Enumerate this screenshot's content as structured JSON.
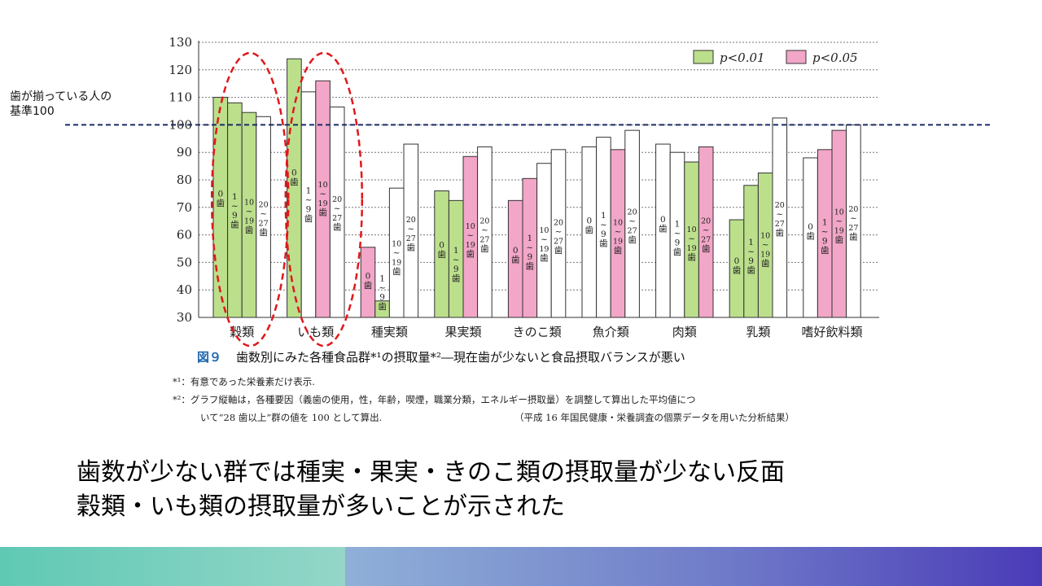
{
  "side_note": [
    "歯が揃っている人の",
    "基準100"
  ],
  "chart_data": {
    "type": "bar",
    "ylim": [
      30,
      130
    ],
    "yticks": [
      30,
      40,
      50,
      60,
      70,
      80,
      90,
      100,
      110,
      120,
      130
    ],
    "reference_line": 100,
    "legend": [
      {
        "label": "p<0.01",
        "color": "#bcdf8c"
      },
      {
        "label": "p<0.05",
        "color": "#f2a6c8"
      }
    ],
    "legend_placement": "top-right",
    "bar_labels": [
      "0歯",
      "1~9歯",
      "10~19歯",
      "20~27歯"
    ],
    "categories": [
      {
        "name": "穀類",
        "values": [
          110,
          108,
          104.5,
          103
        ],
        "sig": [
          "g",
          "g",
          "g",
          "n"
        ],
        "highlighted": true
      },
      {
        "name": "いも類",
        "values": [
          124,
          112,
          116,
          106.5
        ],
        "sig": [
          "g",
          "n",
          "p",
          "n"
        ],
        "highlighted": true
      },
      {
        "name": "種実類",
        "values": [
          55.5,
          36,
          77,
          93
        ],
        "sig": [
          "p",
          "g",
          "n",
          "n"
        ]
      },
      {
        "name": "果実類",
        "values": [
          76,
          72.5,
          88.5,
          92
        ],
        "sig": [
          "g",
          "g",
          "p",
          "n"
        ]
      },
      {
        "name": "きのこ類",
        "values": [
          72.5,
          80.5,
          86,
          91
        ],
        "sig": [
          "p",
          "p",
          "n",
          "n"
        ]
      },
      {
        "name": "魚介類",
        "values": [
          92,
          95.5,
          91,
          98
        ],
        "sig": [
          "n",
          "n",
          "p",
          "n"
        ]
      },
      {
        "name": "肉類",
        "values": [
          93,
          90,
          86.5,
          92
        ],
        "sig": [
          "n",
          "n",
          "g",
          "p"
        ]
      },
      {
        "name": "乳類",
        "values": [
          65.5,
          78,
          82.5,
          102.5
        ],
        "sig": [
          "g",
          "g",
          "g",
          "n"
        ]
      },
      {
        "name": "嗜好飲料類",
        "values": [
          88,
          91,
          98,
          100
        ],
        "sig": [
          "n",
          "p",
          "p",
          "n"
        ]
      }
    ],
    "colors": {
      "g": "#bcdf8c",
      "p": "#f2a6c8",
      "n": "#ffffff",
      "ref_line": "#1a2a66",
      "highlight": "#e0181b"
    }
  },
  "caption": {
    "number": "図９",
    "text": "歯数別にみた各種食品群*¹の摂取量*²―現在歯が少ないと食品摂取バランスが悪い"
  },
  "notes": {
    "n1": "*¹：有意であった栄養素だけ表示.",
    "n2": "*²：グラフ縦軸は，各種要因（義歯の使用，性，年齢，喫煙，職業分類，エネルギー摂取量）を調整して算出した平均値につ",
    "n3": "いて“28 歯以上”群の値を 100 として算出.",
    "n3_right": "（平成 16 年国民健康・栄養調査の個票データを用いた分析結果）"
  },
  "summary": [
    "歯数が少ない群では種実・果実・きのこ類の摂取量が少ない反面",
    "穀類・いも類の摂取量が多いことが示された"
  ]
}
